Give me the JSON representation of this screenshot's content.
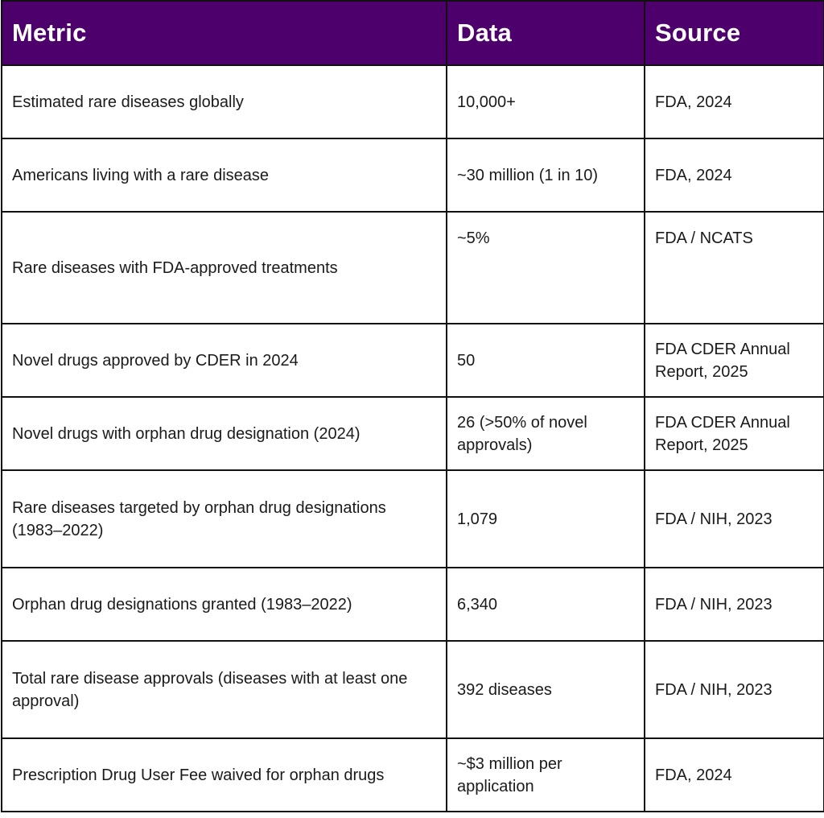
{
  "table": {
    "columns": [
      "Metric",
      "Data",
      "Source"
    ],
    "rows": [
      {
        "metric": "Estimated rare diseases globally",
        "data": "10,000+",
        "source": "FDA, 2024"
      },
      {
        "metric": "Americans living with a rare disease",
        "data": "~30 million (1 in 10)",
        "source": "FDA, 2024"
      },
      {
        "metric": "Rare diseases with FDA-approved treatments",
        "data": "~5%",
        "source": "FDA / NCATS"
      },
      {
        "metric": "Novel drugs approved by CDER in 2024",
        "data": "50",
        "source": "FDA CDER Annual Report, 2025"
      },
      {
        "metric": "Novel drugs with orphan drug designation (2024)",
        "data": "26 (>50% of novel approvals)",
        "source": "FDA CDER Annual Report, 2025"
      },
      {
        "metric": "Rare diseases targeted by orphan drug designations (1983–2022)",
        "data": "1,079",
        "source": "FDA / NIH, 2023"
      },
      {
        "metric": "Orphan drug designations granted (1983–2022)",
        "data": "6,340",
        "source": "FDA / NIH, 2023"
      },
      {
        "metric": "Total rare disease approvals (diseases with at least one approval)",
        "data": "392 diseases",
        "source": "FDA / NIH, 2023"
      },
      {
        "metric": "Prescription Drug User Fee waived for orphan drugs",
        "data": "~$3 million per application",
        "source": "FDA, 2024"
      }
    ]
  },
  "colors": {
    "header_background": "#4d006b",
    "header_text": "#ffffff",
    "border": "#111111",
    "body_text": "#1a1a1a"
  }
}
